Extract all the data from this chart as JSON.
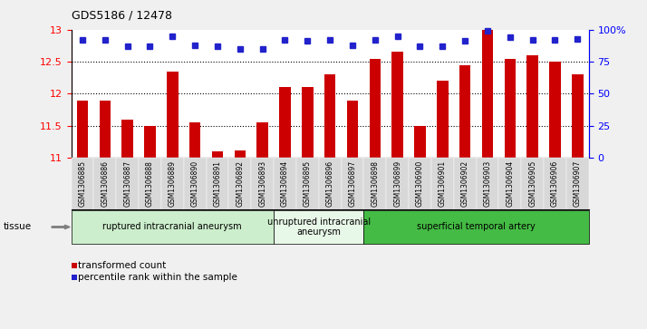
{
  "title": "GDS5186 / 12478",
  "samples": [
    "GSM1306885",
    "GSM1306886",
    "GSM1306887",
    "GSM1306888",
    "GSM1306889",
    "GSM1306890",
    "GSM1306891",
    "GSM1306892",
    "GSM1306893",
    "GSM1306894",
    "GSM1306895",
    "GSM1306896",
    "GSM1306897",
    "GSM1306898",
    "GSM1306899",
    "GSM1306900",
    "GSM1306901",
    "GSM1306902",
    "GSM1306903",
    "GSM1306904",
    "GSM1306905",
    "GSM1306906",
    "GSM1306907"
  ],
  "bar_values": [
    11.9,
    11.9,
    11.6,
    11.5,
    12.35,
    11.55,
    11.1,
    11.12,
    11.55,
    12.1,
    12.1,
    12.3,
    11.9,
    12.55,
    12.65,
    11.5,
    12.2,
    12.45,
    13.0,
    12.55,
    12.6,
    12.5,
    12.3
  ],
  "percentile_values": [
    92,
    92,
    87,
    87,
    95,
    88,
    87,
    85,
    85,
    92,
    91,
    92,
    88,
    92,
    95,
    87,
    87,
    91,
    99,
    94,
    92,
    92,
    93
  ],
  "bar_color": "#cc0000",
  "dot_color": "#2222cc",
  "ylim_left": [
    11,
    13
  ],
  "ylim_right": [
    0,
    100
  ],
  "yticks_left": [
    11,
    11.5,
    12,
    12.5,
    13
  ],
  "yticks_right": [
    0,
    25,
    50,
    75,
    100
  ],
  "ytick_labels_right": [
    "0",
    "25",
    "50",
    "75",
    "100%"
  ],
  "groups": [
    {
      "label": "ruptured intracranial aneurysm",
      "start": 0,
      "end": 9,
      "color": "#cceecc"
    },
    {
      "label": "unruptured intracranial\naneurysm",
      "start": 9,
      "end": 13,
      "color": "#e8f8e8"
    },
    {
      "label": "superficial temporal artery",
      "start": 13,
      "end": 23,
      "color": "#44bb44"
    }
  ],
  "tissue_label": "tissue",
  "legend_bar_label": "transformed count",
  "legend_dot_label": "percentile rank within the sample",
  "fig_bg_color": "#f0f0f0",
  "plot_bg_color": "#ffffff",
  "tick_area_color": "#d8d8d8"
}
